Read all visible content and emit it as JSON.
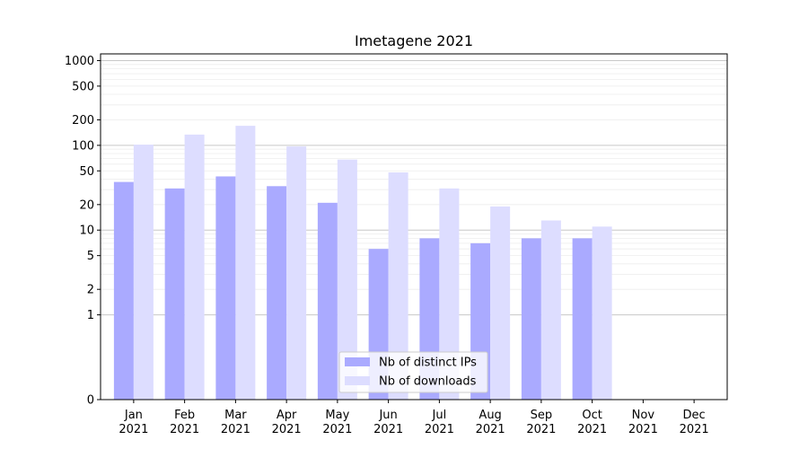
{
  "chart_data": {
    "type": "bar",
    "title": "Imetagene 2021",
    "xlabel": "",
    "ylabel": "",
    "y_scale": "symlog",
    "ylim": [
      0,
      1200
    ],
    "grid": "y-major-and-minor",
    "legend_position": "lower-center",
    "categories": [
      "Jan\n2021",
      "Feb\n2021",
      "Mar\n2021",
      "Apr\n2021",
      "May\n2021",
      "Jun\n2021",
      "Jul\n2021",
      "Aug\n2021",
      "Sep\n2021",
      "Oct\n2021",
      "Nov\n2021",
      "Dec\n2021"
    ],
    "category_labels": [
      [
        "Jan",
        "2021"
      ],
      [
        "Feb",
        "2021"
      ],
      [
        "Mar",
        "2021"
      ],
      [
        "Apr",
        "2021"
      ],
      [
        "May",
        "2021"
      ],
      [
        "Jun",
        "2021"
      ],
      [
        "Jul",
        "2021"
      ],
      [
        "Aug",
        "2021"
      ],
      [
        "Sep",
        "2021"
      ],
      [
        "Oct",
        "2021"
      ],
      [
        "Nov",
        "2021"
      ],
      [
        "Dec",
        "2021"
      ]
    ],
    "y_ticks": [
      0,
      1,
      2,
      5,
      10,
      20,
      50,
      100,
      200,
      500,
      1000
    ],
    "y_tick_labels": [
      "0",
      "1",
      "2",
      "5",
      "10",
      "20",
      "50",
      "100",
      "200",
      "500",
      "1000"
    ],
    "series": [
      {
        "name": "Nb of distinct IPs",
        "color": "#aaaaff",
        "values": [
          37,
          31,
          43,
          33,
          21,
          6,
          8,
          7,
          8,
          8,
          0,
          0
        ]
      },
      {
        "name": "Nb of downloads",
        "color": "#ddddff",
        "values": [
          102,
          134,
          170,
          97,
          68,
          48,
          31,
          19,
          13,
          11,
          0,
          0
        ]
      }
    ]
  }
}
